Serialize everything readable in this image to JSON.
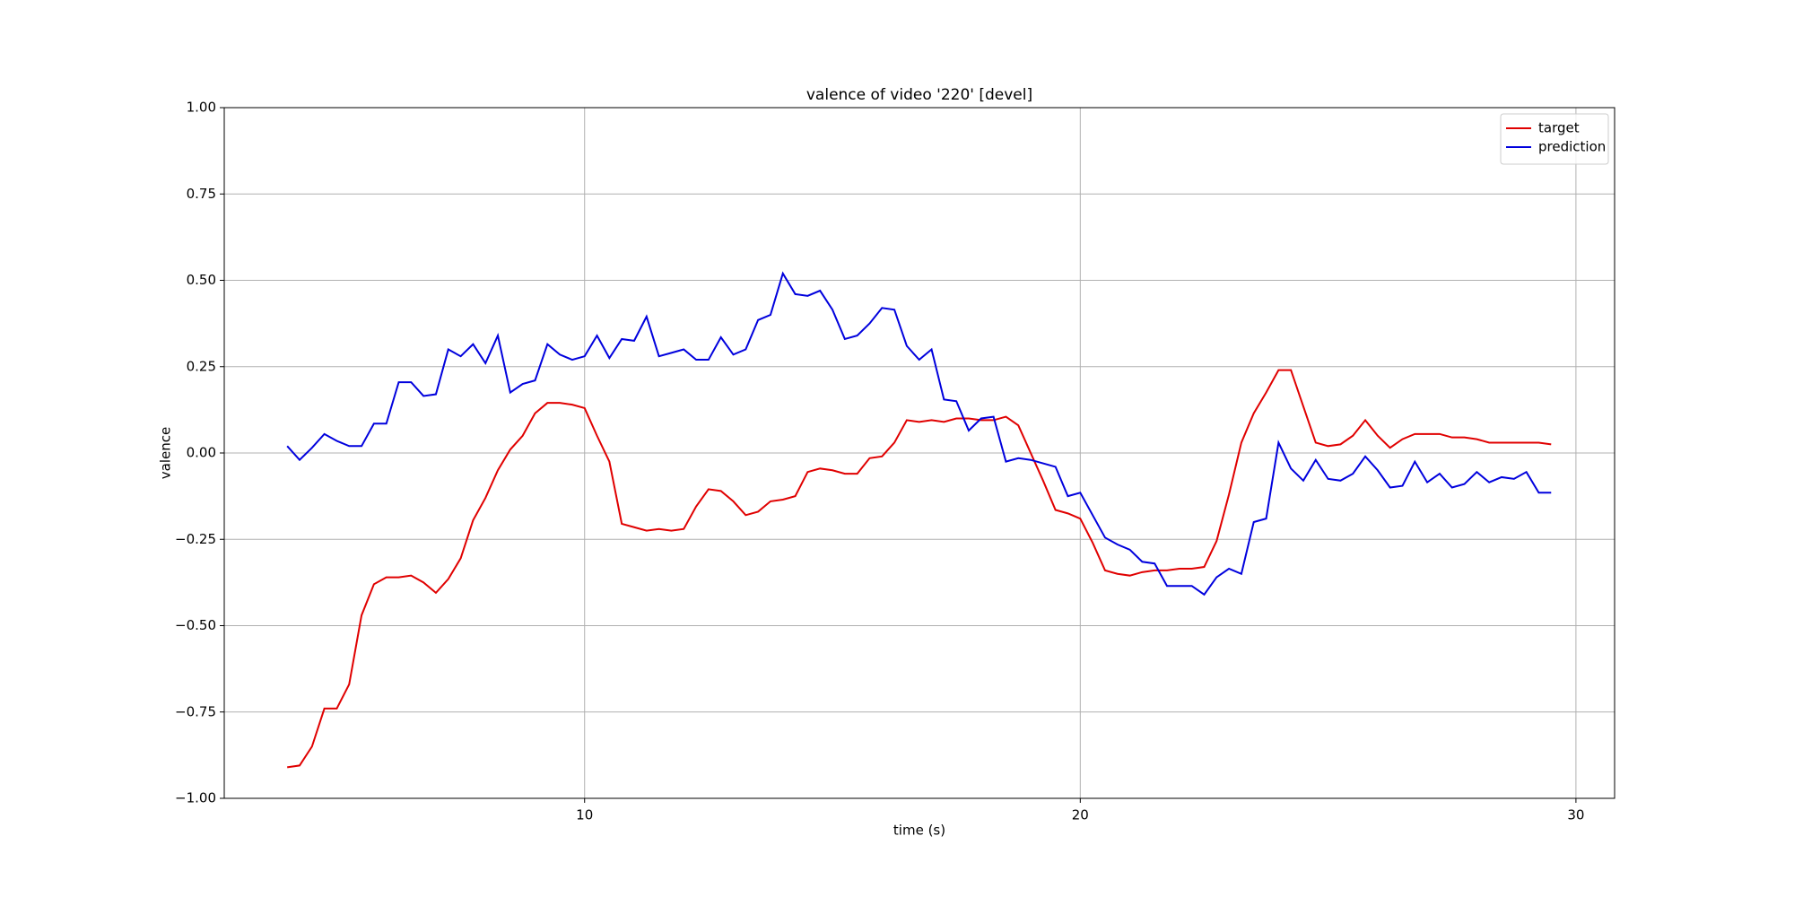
{
  "chart_data": {
    "type": "line",
    "title": "valence of video '220' [devel]",
    "x_label": "time (s)",
    "y_label": "valence",
    "x": [
      4.0,
      4.25,
      4.5,
      4.75,
      5.0,
      5.25,
      5.5,
      5.75,
      6.0,
      6.25,
      6.5,
      6.75,
      7.0,
      7.25,
      7.5,
      7.75,
      8.0,
      8.25,
      8.5,
      8.75,
      9.0,
      9.25,
      9.5,
      9.75,
      10.0,
      10.25,
      10.5,
      10.75,
      11.0,
      11.25,
      11.5,
      11.75,
      12.0,
      12.25,
      12.5,
      12.75,
      13.0,
      13.25,
      13.5,
      13.75,
      14.0,
      14.25,
      14.5,
      14.75,
      15.0,
      15.25,
      15.5,
      15.75,
      16.0,
      16.25,
      16.5,
      16.75,
      17.0,
      17.25,
      17.5,
      17.75,
      18.0,
      18.25,
      18.5,
      18.75,
      19.0,
      19.25,
      19.5,
      19.75,
      20.0,
      20.25,
      20.5,
      20.75,
      21.0,
      21.25,
      21.5,
      21.75,
      22.0,
      22.25,
      22.5,
      22.75,
      23.0,
      23.25,
      23.5,
      23.75,
      24.0,
      24.25,
      24.5,
      24.75,
      25.0,
      25.25,
      25.5,
      25.75,
      26.0,
      26.25,
      26.5,
      26.75,
      27.0,
      27.25,
      27.5,
      27.75,
      28.0,
      28.25,
      28.5,
      28.75,
      29.0,
      29.25,
      29.5
    ],
    "series": [
      {
        "name": "target",
        "color": "#e00000",
        "values": [
          -0.91,
          -0.905,
          -0.85,
          -0.74,
          -0.74,
          -0.67,
          -0.47,
          -0.38,
          -0.36,
          -0.36,
          -0.355,
          -0.375,
          -0.405,
          -0.365,
          -0.305,
          -0.195,
          -0.13,
          -0.05,
          0.01,
          0.05,
          0.115,
          0.145,
          0.145,
          0.14,
          0.13,
          0.05,
          -0.025,
          -0.205,
          -0.215,
          -0.225,
          -0.22,
          -0.225,
          -0.22,
          -0.155,
          -0.105,
          -0.11,
          -0.14,
          -0.18,
          -0.17,
          -0.14,
          -0.135,
          -0.125,
          -0.055,
          -0.045,
          -0.05,
          -0.06,
          -0.06,
          -0.015,
          -0.01,
          0.03,
          0.095,
          0.09,
          0.095,
          0.09,
          0.1,
          0.1,
          0.095,
          0.095,
          0.105,
          0.08,
          0.0,
          -0.08,
          -0.165,
          -0.175,
          -0.19,
          -0.26,
          -0.34,
          -0.35,
          -0.355,
          -0.345,
          -0.34,
          -0.34,
          -0.335,
          -0.335,
          -0.33,
          -0.255,
          -0.12,
          0.03,
          0.115,
          0.175,
          0.24,
          0.24,
          0.135,
          0.03,
          0.02,
          0.025,
          0.05,
          0.095,
          0.05,
          0.015,
          0.04,
          0.055,
          0.055,
          0.055,
          0.045,
          0.045,
          0.04,
          0.03,
          0.03,
          0.03,
          0.03,
          0.03,
          0.025
        ]
      },
      {
        "name": "prediction",
        "color": "#0000dd",
        "values": [
          0.02,
          -0.02,
          0.015,
          0.055,
          0.035,
          0.02,
          0.02,
          0.085,
          0.085,
          0.205,
          0.205,
          0.165,
          0.17,
          0.3,
          0.28,
          0.315,
          0.26,
          0.34,
          0.175,
          0.2,
          0.21,
          0.315,
          0.285,
          0.27,
          0.28,
          0.34,
          0.275,
          0.33,
          0.325,
          0.395,
          0.28,
          0.29,
          0.3,
          0.27,
          0.27,
          0.335,
          0.285,
          0.3,
          0.385,
          0.4,
          0.52,
          0.46,
          0.455,
          0.47,
          0.415,
          0.33,
          0.34,
          0.375,
          0.42,
          0.415,
          0.31,
          0.27,
          0.3,
          0.155,
          0.15,
          0.065,
          0.1,
          0.105,
          -0.025,
          -0.015,
          -0.02,
          -0.03,
          -0.04,
          -0.125,
          -0.115,
          -0.18,
          -0.245,
          -0.265,
          -0.28,
          -0.315,
          -0.32,
          -0.385,
          -0.385,
          -0.385,
          -0.41,
          -0.36,
          -0.335,
          -0.35,
          -0.2,
          -0.19,
          0.03,
          -0.045,
          -0.08,
          -0.02,
          -0.075,
          -0.08,
          -0.06,
          -0.01,
          -0.05,
          -0.1,
          -0.095,
          -0.025,
          -0.085,
          -0.06,
          -0.1,
          -0.09,
          -0.055,
          -0.085,
          -0.07,
          -0.075,
          -0.055,
          -0.115,
          -0.115
        ]
      }
    ],
    "xlim": [
      2.73,
      30.78
    ],
    "ylim": [
      -1,
      1
    ],
    "xticks": [
      10,
      20,
      30
    ],
    "yticks": [
      {
        "value": -1,
        "label": "−1.00"
      },
      {
        "value": -0.75,
        "label": "−0.75"
      },
      {
        "value": -0.5,
        "label": "−0.50"
      },
      {
        "value": -0.25,
        "label": "−0.25"
      },
      {
        "value": 0,
        "label": "0.00"
      },
      {
        "value": 0.25,
        "label": "0.25"
      },
      {
        "value": 0.5,
        "label": "0.50"
      },
      {
        "value": 0.75,
        "label": "0.75"
      },
      {
        "value": 1,
        "label": "1.00"
      }
    ],
    "grid": true,
    "legend": "upper right"
  }
}
